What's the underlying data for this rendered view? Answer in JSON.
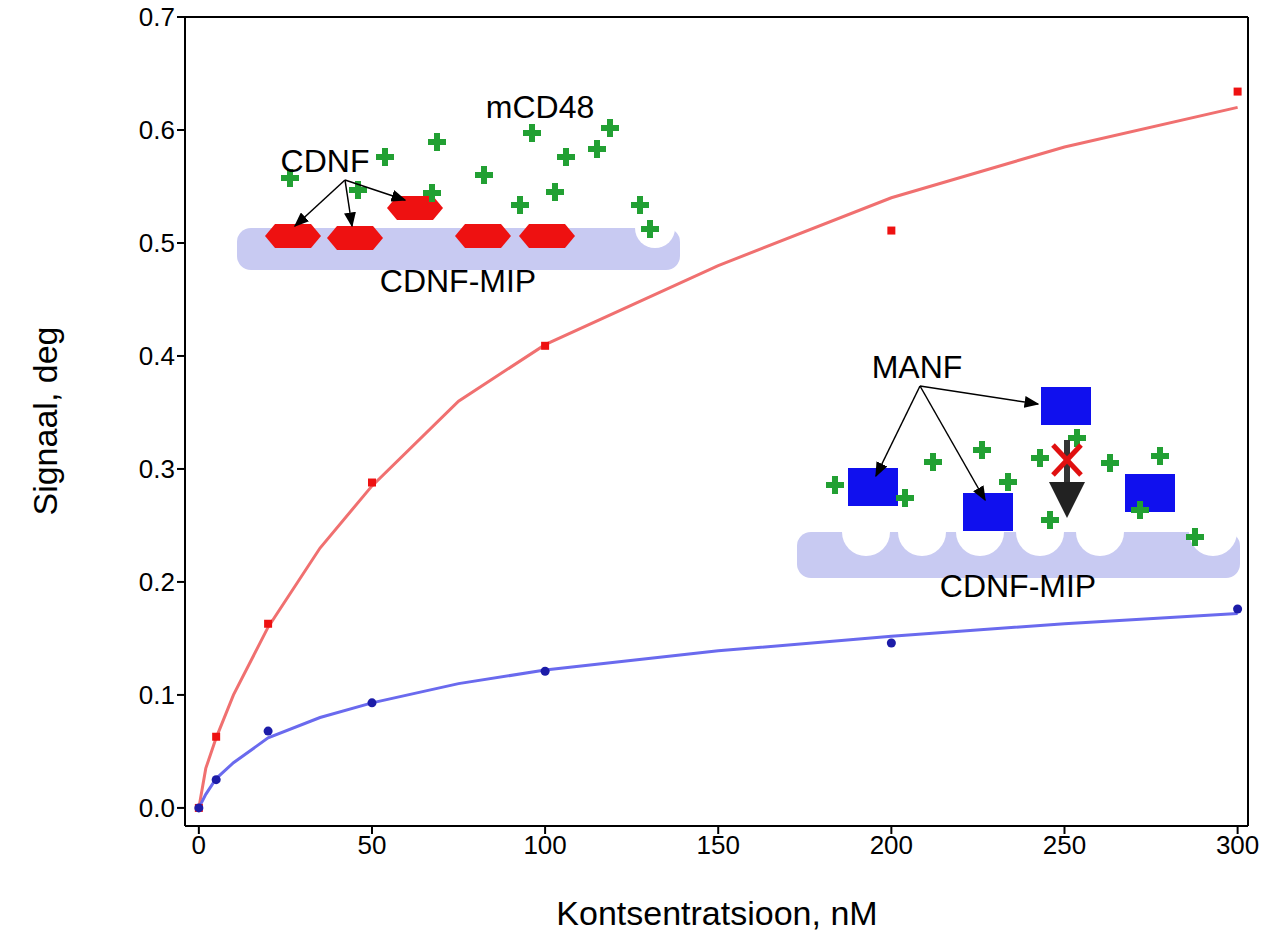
{
  "chart_data": {
    "type": "scatter",
    "x_label": "Kontsentratsioon, nM",
    "y_label": "Signaal, deg",
    "xlim": [
      -4,
      303
    ],
    "xticks": [
      0,
      50,
      100,
      150,
      200,
      250,
      300
    ],
    "ylim": [
      -0.016,
      0.7
    ],
    "yticks": [
      {
        "value": 0,
        "label": "0.0"
      },
      0.1,
      0.2,
      0.3,
      0.4,
      0.5,
      0.6,
      0.7
    ],
    "grid": false,
    "series": [
      {
        "name": "CDNF",
        "color": "#ee1111",
        "marker": "square",
        "x": [
          0,
          5,
          20,
          50,
          100,
          200,
          300
        ],
        "values": [
          0,
          0.063,
          0.163,
          0.288,
          0.409,
          0.511,
          0.634
        ],
        "fit": {
          "color": "#f07070",
          "x": [
            0,
            2,
            5,
            10,
            20,
            35,
            50,
            75,
            100,
            150,
            200,
            250,
            300
          ],
          "values": [
            0,
            0.035,
            0.062,
            0.1,
            0.16,
            0.23,
            0.285,
            0.36,
            0.41,
            0.48,
            0.54,
            0.585,
            0.62
          ]
        }
      },
      {
        "name": "MANF",
        "color": "#1c1ca8",
        "marker": "circle",
        "x": [
          0,
          5,
          20,
          50,
          100,
          200,
          300
        ],
        "values": [
          0,
          0.025,
          0.068,
          0.093,
          0.121,
          0.146,
          0.176
        ],
        "fit": {
          "color": "#6a6aee",
          "x": [
            0,
            2,
            5,
            10,
            20,
            35,
            50,
            75,
            100,
            150,
            200,
            250,
            300
          ],
          "values": [
            0,
            0.012,
            0.026,
            0.04,
            0.062,
            0.08,
            0.093,
            0.11,
            0.122,
            0.139,
            0.152,
            0.163,
            0.172
          ]
        }
      }
    ],
    "annotations": [
      "mCD48",
      "CDNF-MIP",
      "CDNF-MIP"
    ]
  }
}
